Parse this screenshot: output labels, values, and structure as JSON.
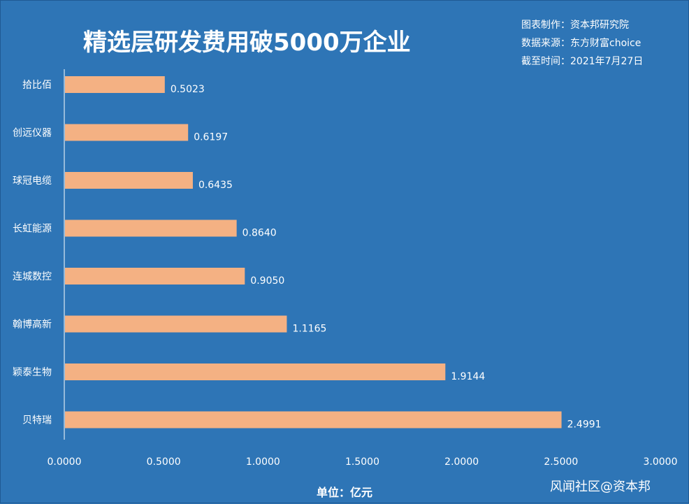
{
  "header": {
    "title": "精选层研发费用破5000万企业"
  },
  "meta": {
    "producer": "图表制作：资本邦研究院",
    "source": "数据来源：东方财富choice",
    "date": "截至时间：2021年7月27日"
  },
  "footer": {
    "unit": "单位：亿元",
    "watermark": "风闻社区@资本邦"
  },
  "colors": {
    "background": "#2e75b6",
    "bar": "#f4b183",
    "text": "#ffffff"
  },
  "chart_data": {
    "type": "bar",
    "orientation": "horizontal",
    "title": "精选层研发费用破5000万企业",
    "xlabel": "单位：亿元",
    "ylabel": "",
    "categories": [
      "拾比佰",
      "创远仪器",
      "球冠电缆",
      "长虹能源",
      "连城数控",
      "翰博高新",
      "颖泰生物",
      "贝特瑞"
    ],
    "values": [
      0.5023,
      0.6197,
      0.6435,
      0.864,
      0.905,
      1.1165,
      1.9144,
      2.4991
    ],
    "value_labels": [
      "0.5023",
      "0.6197",
      "0.6435",
      "0.8640",
      "0.9050",
      "1.1165",
      "1.9144",
      "2.4991"
    ],
    "xlim": [
      0,
      3
    ],
    "xticks": [
      0,
      0.5,
      1,
      1.5,
      2,
      2.5,
      3
    ],
    "xtick_labels": [
      "0.0000",
      "0.5000",
      "1.0000",
      "1.5000",
      "2.0000",
      "2.5000",
      "3.0000"
    ],
    "grid": false,
    "legend": "none"
  }
}
